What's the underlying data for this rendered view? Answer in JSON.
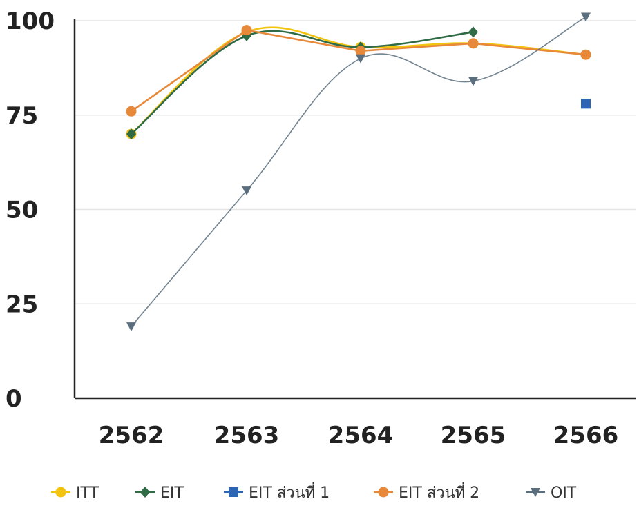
{
  "chart_data": {
    "type": "line",
    "title": "",
    "xlabel": "",
    "ylabel": "",
    "categories": [
      "2562",
      "2563",
      "2564",
      "2565",
      "2566"
    ],
    "ylim": [
      0,
      100
    ],
    "yticks": [
      0,
      25,
      50,
      75,
      100
    ],
    "grid": true,
    "legend_position": "bottom",
    "series": [
      {
        "name": "ITT",
        "color": "#f2c40f",
        "marker": "circle",
        "smooth": true,
        "values": [
          70,
          97,
          93,
          94,
          91
        ]
      },
      {
        "name": "EIT",
        "color": "#2f6b45",
        "marker": "diamond",
        "smooth": true,
        "values": [
          70,
          96,
          93,
          97,
          null
        ]
      },
      {
        "name": "EIT ส่วนที่ 1",
        "color": "#2b65b3",
        "marker": "square",
        "smooth": false,
        "values": [
          null,
          null,
          null,
          null,
          78
        ]
      },
      {
        "name": "EIT ส่วนที่ 2",
        "color": "#e8893a",
        "marker": "circle",
        "smooth": false,
        "values": [
          76,
          97.5,
          92,
          94,
          91
        ]
      },
      {
        "name": "OIT",
        "color": "#5a6e7e",
        "marker": "triangle-down",
        "smooth": true,
        "values": [
          19,
          55,
          90,
          84,
          101
        ]
      }
    ]
  }
}
